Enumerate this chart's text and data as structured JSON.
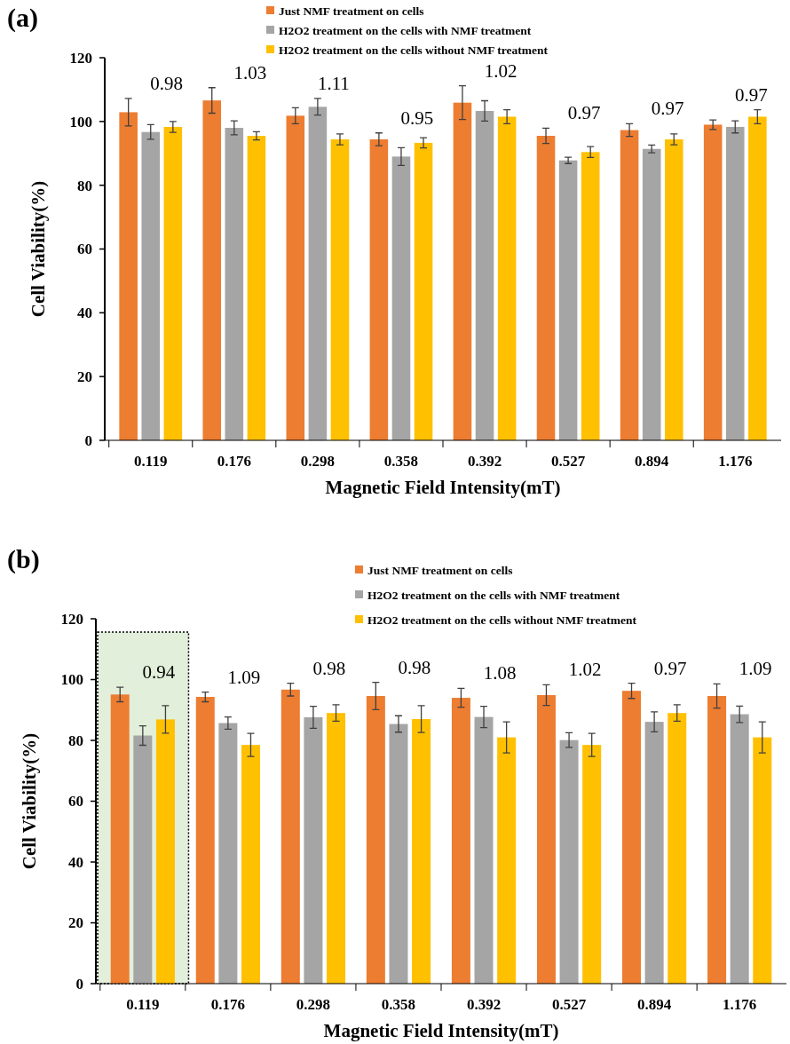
{
  "chart_data": [
    {
      "type": "bar",
      "title": "(a)",
      "xlabel": "Magnetic Field Intensity(mT)",
      "ylabel": "Cell Viability(%)",
      "categories": [
        "0.119",
        "0.176",
        "0.298",
        "0.358",
        "0.392",
        "0.527",
        "0.894",
        "1.176"
      ],
      "ylim": [
        0,
        120
      ],
      "yticks": [
        0,
        20,
        40,
        60,
        80,
        100,
        120
      ],
      "legend": "top",
      "series": [
        {
          "name": "Just NMF treatment on cells",
          "color": "#ed7d31",
          "values": [
            102.9,
            106.6,
            101.8,
            94.4,
            105.9,
            95.5,
            97.3,
            99
          ],
          "errors": [
            4.3,
            4,
            2.5,
            2,
            5.3,
            2.4,
            2,
            1.5
          ]
        },
        {
          "name": "H2O2 treatment on the cells with NMF treatment",
          "color": "#a5a5a5",
          "values": [
            96.7,
            98,
            104.6,
            89,
            103.3,
            87.8,
            91.4,
            98.3
          ],
          "errors": [
            2.3,
            2.2,
            2.6,
            2.8,
            3.2,
            1,
            1.2,
            1.9
          ]
        },
        {
          "name": "H2O2 treatment on the cells without NMF treatment",
          "color": "#ffc000",
          "values": [
            98.3,
            95.5,
            94.4,
            93.3,
            101.5,
            90.4,
            94.4,
            101.5
          ],
          "errors": [
            1.7,
            1.3,
            1.7,
            1.6,
            2.2,
            1.7,
            1.7,
            2.2
          ]
        }
      ],
      "annotations": [
        "0.98",
        "1.03",
        "1.11",
        "0.95",
        "1.02",
        "0.97",
        "0.97",
        "0.97"
      ]
    },
    {
      "type": "bar",
      "title": "(b)",
      "xlabel": "Magnetic Field Intensity(mT)",
      "ylabel": "Cell Viability(%)",
      "categories": [
        "0.119",
        "0.176",
        "0.298",
        "0.358",
        "0.392",
        "0.527",
        "0.894",
        "1.176"
      ],
      "ylim": [
        0,
        120
      ],
      "yticks": [
        0,
        20,
        40,
        60,
        80,
        100,
        120
      ],
      "legend": "top",
      "series": [
        {
          "name": "Just NMF treatment on cells",
          "color": "#ed7d31",
          "values": [
            95.1,
            94.3,
            96.7,
            94.6,
            94,
            94.9,
            96.3,
            94.6
          ],
          "errors": [
            2.4,
            1.6,
            2.1,
            4.5,
            3.1,
            3.4,
            2.5,
            4
          ]
        },
        {
          "name": "H2O2 treatment on the cells with NMF treatment",
          "color": "#a5a5a5",
          "values": [
            81.6,
            85.7,
            87.6,
            85.4,
            87.7,
            80.1,
            86.1,
            88.6
          ],
          "errors": [
            3.2,
            2,
            3.6,
            2.7,
            3.5,
            2.4,
            3.3,
            2.7
          ]
        },
        {
          "name": "H2O2 treatment on the cells without NMF treatment",
          "color": "#ffc000",
          "values": [
            86.9,
            78.5,
            89,
            87,
            81,
            78.5,
            89,
            81
          ],
          "errors": [
            4.5,
            3.8,
            2.7,
            4.4,
            5.1,
            3.8,
            2.7,
            5.1
          ]
        }
      ],
      "bands": [
        {
          "axis": "x",
          "from": "0.119",
          "to": "0.119",
          "color": "#e2efda"
        }
      ],
      "annotations": [
        "0.94",
        "1.09",
        "0.98",
        "0.98",
        "1.08",
        "1.02",
        "0.97",
        "1.09"
      ]
    }
  ]
}
